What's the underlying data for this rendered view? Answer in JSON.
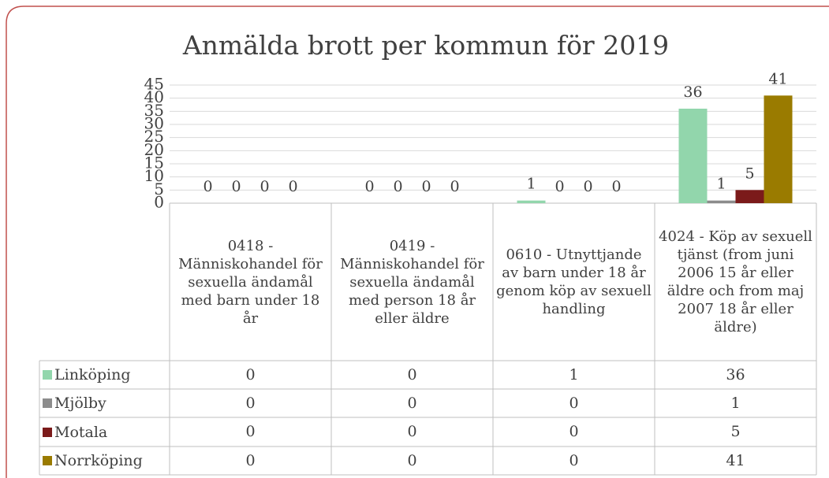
{
  "chart_data": {
    "type": "bar",
    "title": "Anmälda brott per kommun för 2019",
    "categories": [
      "0418 - Människohandel för sexuella ändamål med barn under 18 år",
      "0419 - Människohandel för sexuella ändamål med person 18 år eller äldre",
      "0610 - Utnyttjande av barn under 18 år genom köp av sexuell handling",
      "4024 - Köp av sexuell tjänst (from juni 2006 15 år eller äldre och  from maj 2007 18 år eller äldre)"
    ],
    "series": [
      {
        "name": "Linköping",
        "color": "#92d6ac",
        "values": [
          0,
          0,
          1,
          36
        ]
      },
      {
        "name": "Mjölby",
        "color": "#8c8c8c",
        "values": [
          0,
          0,
          0,
          1
        ]
      },
      {
        "name": "Motala",
        "color": "#7b1a1a",
        "values": [
          0,
          0,
          0,
          5
        ]
      },
      {
        "name": "Norrköping",
        "color": "#9a7b00",
        "values": [
          0,
          0,
          0,
          41
        ]
      }
    ],
    "ylim": [
      0,
      45
    ],
    "yticks": [
      0,
      5,
      10,
      15,
      20,
      25,
      30,
      35,
      40,
      45
    ],
    "grid": true,
    "data_table": true
  }
}
